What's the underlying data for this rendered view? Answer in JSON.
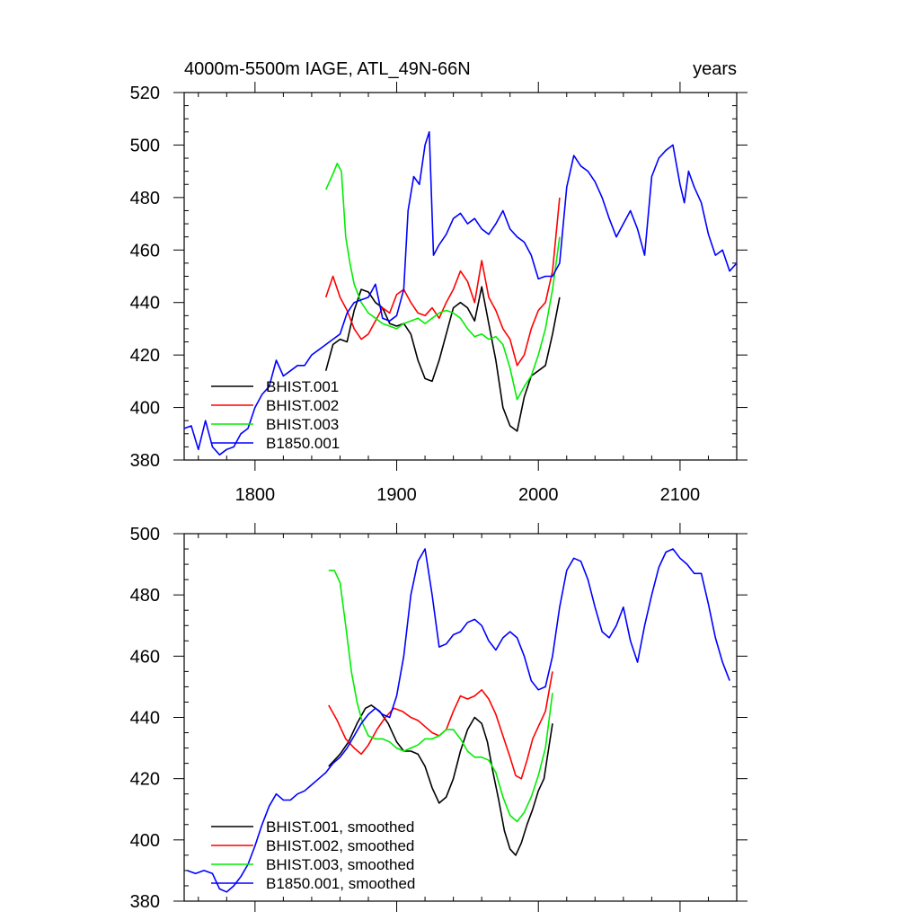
{
  "chart_data": [
    {
      "type": "line",
      "title": "4000m-5500m IAGE, ATL_49N-66N",
      "units": "years",
      "xlim": [
        1750,
        2140
      ],
      "ylim": [
        380,
        520
      ],
      "xticks": [
        1800,
        1900,
        2000,
        2100
      ],
      "yticks": [
        380,
        400,
        420,
        440,
        460,
        480,
        500,
        520
      ],
      "series": [
        {
          "name": "BHIST.001",
          "color": "#000000",
          "x": [
            1850,
            1855,
            1860,
            1865,
            1870,
            1875,
            1880,
            1885,
            1890,
            1895,
            1900,
            1905,
            1910,
            1915,
            1920,
            1925,
            1930,
            1935,
            1940,
            1945,
            1950,
            1955,
            1960,
            1965,
            1970,
            1975,
            1980,
            1985,
            1990,
            1995,
            2000,
            2005,
            2010,
            2015
          ],
          "y": [
            414,
            424,
            426,
            425,
            437,
            445,
            444,
            440,
            438,
            432,
            431,
            432,
            428,
            418,
            411,
            410,
            418,
            428,
            438,
            440,
            438,
            433,
            446,
            432,
            418,
            400,
            393,
            391,
            404,
            412,
            414,
            416,
            428,
            442
          ]
        },
        {
          "name": "BHIST.002",
          "color": "#ff0000",
          "x": [
            1850,
            1855,
            1860,
            1865,
            1870,
            1875,
            1880,
            1885,
            1890,
            1895,
            1900,
            1905,
            1910,
            1915,
            1920,
            1925,
            1930,
            1935,
            1940,
            1945,
            1950,
            1955,
            1960,
            1965,
            1970,
            1975,
            1980,
            1985,
            1990,
            1995,
            2000,
            2005,
            2010,
            2015
          ],
          "y": [
            442,
            450,
            442,
            437,
            430,
            426,
            428,
            433,
            438,
            436,
            443,
            445,
            440,
            436,
            435,
            438,
            434,
            440,
            445,
            452,
            448,
            440,
            456,
            442,
            437,
            430,
            426,
            416,
            420,
            430,
            437,
            440,
            452,
            480
          ]
        },
        {
          "name": "BHIST.003",
          "color": "#00ee00",
          "x": [
            1850,
            1855,
            1858,
            1861,
            1864,
            1867,
            1870,
            1875,
            1880,
            1885,
            1890,
            1895,
            1900,
            1905,
            1910,
            1915,
            1920,
            1925,
            1930,
            1935,
            1940,
            1945,
            1950,
            1955,
            1960,
            1965,
            1970,
            1975,
            1980,
            1985,
            1990,
            1995,
            2000,
            2005,
            2010,
            2015
          ],
          "y": [
            483,
            489,
            493,
            490,
            465,
            455,
            447,
            440,
            436,
            434,
            432,
            431,
            430,
            432,
            433,
            434,
            432,
            434,
            436,
            437,
            436,
            434,
            430,
            427,
            428,
            426,
            427,
            424,
            415,
            403,
            408,
            412,
            420,
            430,
            445,
            465
          ]
        },
        {
          "name": "B1850.001",
          "color": "#0000ff",
          "x": [
            1750,
            1755,
            1760,
            1765,
            1770,
            1775,
            1780,
            1785,
            1790,
            1795,
            1800,
            1805,
            1810,
            1815,
            1820,
            1825,
            1830,
            1835,
            1840,
            1845,
            1850,
            1855,
            1860,
            1865,
            1870,
            1875,
            1880,
            1885,
            1890,
            1895,
            1900,
            1905,
            1908,
            1912,
            1916,
            1920,
            1923,
            1926,
            1930,
            1935,
            1940,
            1945,
            1950,
            1955,
            1960,
            1965,
            1970,
            1975,
            1980,
            1985,
            1990,
            1995,
            2000,
            2005,
            2010,
            2015,
            2020,
            2025,
            2030,
            2035,
            2040,
            2045,
            2050,
            2055,
            2060,
            2065,
            2070,
            2075,
            2080,
            2085,
            2090,
            2095,
            2100,
            2103,
            2106,
            2110,
            2115,
            2120,
            2125,
            2130,
            2135,
            2140
          ],
          "y": [
            392,
            393,
            384,
            395,
            385,
            382,
            384,
            385,
            390,
            392,
            400,
            405,
            408,
            418,
            412,
            414,
            416,
            416,
            420,
            422,
            424,
            426,
            428,
            436,
            440,
            441,
            442,
            447,
            434,
            433,
            435,
            445,
            475,
            488,
            485,
            500,
            505,
            458,
            462,
            466,
            472,
            474,
            470,
            472,
            468,
            466,
            470,
            475,
            468,
            465,
            463,
            458,
            449,
            450,
            450,
            455,
            484,
            496,
            492,
            490,
            486,
            480,
            472,
            465,
            470,
            475,
            468,
            458,
            488,
            495,
            498,
            500,
            485,
            478,
            490,
            484,
            478,
            466,
            458,
            460,
            452,
            455
          ]
        }
      ]
    },
    {
      "type": "line",
      "title": "",
      "xlim": [
        1750,
        2140
      ],
      "ylim": [
        380,
        500
      ],
      "xticks": [
        1800,
        1900,
        2000,
        2100
      ],
      "yticks": [
        380,
        400,
        420,
        440,
        460,
        480,
        500
      ],
      "series": [
        {
          "name": "BHIST.001, smoothed",
          "color": "#000000",
          "x": [
            1852,
            1860,
            1866,
            1872,
            1878,
            1882,
            1888,
            1894,
            1900,
            1905,
            1910,
            1915,
            1920,
            1925,
            1930,
            1935,
            1940,
            1945,
            1950,
            1955,
            1960,
            1964,
            1968,
            1972,
            1976,
            1980,
            1984,
            1988,
            1992,
            1996,
            2000,
            2004,
            2010
          ],
          "y": [
            424,
            428,
            432,
            438,
            443,
            444,
            442,
            438,
            432,
            429,
            429,
            428,
            424,
            417,
            412,
            414,
            420,
            429,
            436,
            440,
            438,
            432,
            422,
            413,
            403,
            397,
            395,
            399,
            405,
            410,
            416,
            420,
            438
          ]
        },
        {
          "name": "BHIST.002, smoothed",
          "color": "#ff0000",
          "x": [
            1852,
            1858,
            1864,
            1870,
            1875,
            1880,
            1886,
            1892,
            1898,
            1904,
            1910,
            1915,
            1920,
            1925,
            1930,
            1935,
            1940,
            1945,
            1950,
            1955,
            1960,
            1965,
            1970,
            1975,
            1980,
            1984,
            1988,
            1992,
            1996,
            2000,
            2005,
            2010
          ],
          "y": [
            444,
            439,
            433,
            430,
            428,
            431,
            436,
            440,
            443,
            442,
            440,
            439,
            437,
            435,
            434,
            436,
            442,
            447,
            446,
            447,
            449,
            446,
            441,
            434,
            427,
            421,
            420,
            426,
            433,
            437,
            442,
            455
          ]
        },
        {
          "name": "BHIST.003, smoothed",
          "color": "#00ee00",
          "x": [
            1852,
            1856,
            1860,
            1864,
            1868,
            1872,
            1876,
            1880,
            1885,
            1890,
            1895,
            1900,
            1905,
            1910,
            1915,
            1920,
            1925,
            1930,
            1935,
            1940,
            1945,
            1950,
            1955,
            1960,
            1965,
            1970,
            1975,
            1980,
            1985,
            1990,
            1995,
            2000,
            2005,
            2010
          ],
          "y": [
            488,
            488,
            484,
            470,
            455,
            445,
            438,
            434,
            433,
            433,
            432,
            430,
            429,
            430,
            431,
            433,
            433,
            434,
            436,
            436,
            433,
            429,
            427,
            427,
            426,
            422,
            414,
            408,
            406,
            409,
            414,
            421,
            430,
            448
          ]
        },
        {
          "name": "B1850.001, smoothed",
          "color": "#0000ff",
          "x": [
            1752,
            1758,
            1764,
            1770,
            1775,
            1780,
            1785,
            1790,
            1795,
            1800,
            1805,
            1810,
            1815,
            1820,
            1825,
            1830,
            1835,
            1840,
            1845,
            1850,
            1855,
            1860,
            1865,
            1870,
            1875,
            1880,
            1885,
            1890,
            1895,
            1900,
            1905,
            1910,
            1915,
            1920,
            1925,
            1930,
            1935,
            1940,
            1945,
            1950,
            1955,
            1960,
            1965,
            1970,
            1975,
            1980,
            1985,
            1990,
            1995,
            2000,
            2005,
            2010,
            2015,
            2020,
            2025,
            2030,
            2035,
            2040,
            2045,
            2050,
            2055,
            2060,
            2065,
            2070,
            2075,
            2080,
            2085,
            2090,
            2095,
            2100,
            2105,
            2110,
            2115,
            2120,
            2125,
            2130,
            2135
          ],
          "y": [
            390,
            389,
            390,
            389,
            384,
            383,
            385,
            388,
            392,
            398,
            405,
            411,
            415,
            413,
            413,
            415,
            416,
            418,
            420,
            422,
            425,
            427,
            430,
            434,
            438,
            441,
            443,
            441,
            440,
            447,
            460,
            480,
            491,
            495,
            480,
            463,
            464,
            467,
            468,
            471,
            472,
            470,
            465,
            462,
            466,
            468,
            466,
            460,
            452,
            449,
            450,
            460,
            476,
            488,
            492,
            491,
            485,
            476,
            468,
            466,
            470,
            476,
            465,
            458,
            470,
            480,
            489,
            494,
            495,
            492,
            490,
            487,
            487,
            477,
            466,
            458,
            452
          ]
        }
      ]
    }
  ]
}
